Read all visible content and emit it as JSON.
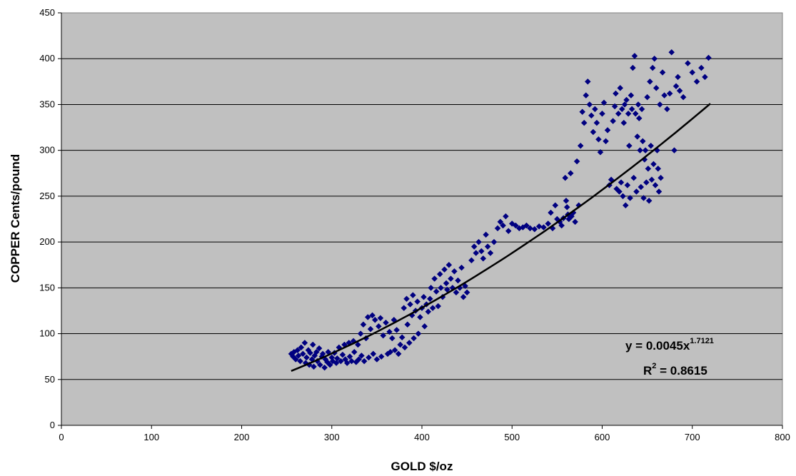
{
  "chart_data": {
    "type": "scatter",
    "title": "",
    "xlabel": "GOLD $/oz",
    "ylabel": "COPPER Cents/pound",
    "xlim": [
      0,
      800
    ],
    "ylim": [
      0,
      450
    ],
    "x_ticks": [
      0,
      100,
      200,
      300,
      400,
      500,
      600,
      700,
      800
    ],
    "y_ticks": [
      0,
      50,
      100,
      150,
      200,
      250,
      300,
      350,
      400,
      450
    ],
    "grid": "horizontal",
    "legend": "none",
    "plot_background": "#c0c0c0",
    "colors": {
      "marker": "#000080",
      "trendline": "#000000"
    },
    "trendline": {
      "type": "power",
      "coefficient": 0.0045,
      "exponent": 1.7121,
      "x_range": [
        255,
        720
      ],
      "equation_prefix": "y = 0.0045x",
      "equation_exponent": "1.7121",
      "r2_prefix": "R",
      "r2_exp": "2",
      "r2_suffix": " = 0.8615"
    },
    "series": [
      {
        "points": [
          [
            255,
            78
          ],
          [
            257,
            75
          ],
          [
            258,
            80
          ],
          [
            260,
            72
          ],
          [
            262,
            82
          ],
          [
            263,
            76
          ],
          [
            265,
            70
          ],
          [
            266,
            85
          ],
          [
            268,
            78
          ],
          [
            270,
            90
          ],
          [
            271,
            68
          ],
          [
            272,
            74
          ],
          [
            274,
            82
          ],
          [
            275,
            66
          ],
          [
            276,
            79
          ],
          [
            278,
            72
          ],
          [
            279,
            88
          ],
          [
            280,
            64
          ],
          [
            281,
            76
          ],
          [
            283,
            80
          ],
          [
            284,
            70
          ],
          [
            286,
            84
          ],
          [
            287,
            66
          ],
          [
            289,
            75
          ],
          [
            290,
            78
          ],
          [
            292,
            63
          ],
          [
            293,
            72
          ],
          [
            295,
            69
          ],
          [
            296,
            80
          ],
          [
            298,
            66
          ],
          [
            300,
            74
          ],
          [
            301,
            70
          ],
          [
            303,
            79
          ],
          [
            305,
            68
          ],
          [
            306,
            73
          ],
          [
            308,
            85
          ],
          [
            310,
            70
          ],
          [
            312,
            77
          ],
          [
            314,
            88
          ],
          [
            315,
            72
          ],
          [
            317,
            68
          ],
          [
            319,
            90
          ],
          [
            320,
            75
          ],
          [
            322,
            70
          ],
          [
            324,
            92
          ],
          [
            325,
            80
          ],
          [
            327,
            69
          ],
          [
            329,
            88
          ],
          [
            330,
            72
          ],
          [
            332,
            100
          ],
          [
            333,
            76
          ],
          [
            335,
            110
          ],
          [
            336,
            70
          ],
          [
            338,
            95
          ],
          [
            340,
            118
          ],
          [
            341,
            74
          ],
          [
            343,
            105
          ],
          [
            345,
            120
          ],
          [
            346,
            78
          ],
          [
            348,
            115
          ],
          [
            350,
            72
          ],
          [
            352,
            108
          ],
          [
            354,
            117
          ],
          [
            355,
            75
          ],
          [
            357,
            98
          ],
          [
            360,
            112
          ],
          [
            362,
            78
          ],
          [
            364,
            102
          ],
          [
            365,
            80
          ],
          [
            367,
            95
          ],
          [
            369,
            115
          ],
          [
            370,
            82
          ],
          [
            372,
            104
          ],
          [
            374,
            78
          ],
          [
            376,
            88
          ],
          [
            378,
            96
          ],
          [
            380,
            128
          ],
          [
            381,
            85
          ],
          [
            383,
            138
          ],
          [
            384,
            110
          ],
          [
            386,
            90
          ],
          [
            387,
            132
          ],
          [
            389,
            120
          ],
          [
            390,
            142
          ],
          [
            391,
            95
          ],
          [
            393,
            125
          ],
          [
            395,
            135
          ],
          [
            396,
            100
          ],
          [
            398,
            118
          ],
          [
            400,
            128
          ],
          [
            402,
            140
          ],
          [
            403,
            108
          ],
          [
            405,
            132
          ],
          [
            407,
            124
          ],
          [
            409,
            138
          ],
          [
            410,
            150
          ],
          [
            412,
            128
          ],
          [
            414,
            160
          ],
          [
            416,
            146
          ],
          [
            418,
            130
          ],
          [
            420,
            165
          ],
          [
            421,
            150
          ],
          [
            423,
            140
          ],
          [
            425,
            170
          ],
          [
            427,
            155
          ],
          [
            428,
            148
          ],
          [
            430,
            175
          ],
          [
            432,
            160
          ],
          [
            434,
            150
          ],
          [
            436,
            168
          ],
          [
            438,
            145
          ],
          [
            440,
            158
          ],
          [
            442,
            150
          ],
          [
            444,
            172
          ],
          [
            446,
            140
          ],
          [
            448,
            152
          ],
          [
            450,
            145
          ],
          [
            455,
            180
          ],
          [
            458,
            195
          ],
          [
            460,
            188
          ],
          [
            463,
            200
          ],
          [
            466,
            190
          ],
          [
            468,
            182
          ],
          [
            471,
            208
          ],
          [
            473,
            195
          ],
          [
            476,
            188
          ],
          [
            480,
            200
          ],
          [
            484,
            215
          ],
          [
            487,
            222
          ],
          [
            490,
            218
          ],
          [
            493,
            228
          ],
          [
            496,
            212
          ],
          [
            500,
            220
          ],
          [
            504,
            218
          ],
          [
            508,
            215
          ],
          [
            512,
            216
          ],
          [
            516,
            218
          ],
          [
            520,
            215
          ],
          [
            525,
            214
          ],
          [
            530,
            217
          ],
          [
            535,
            216
          ],
          [
            540,
            220
          ],
          [
            543,
            232
          ],
          [
            545,
            215
          ],
          [
            548,
            240
          ],
          [
            550,
            225
          ],
          [
            553,
            222
          ],
          [
            555,
            218
          ],
          [
            557,
            226
          ],
          [
            559,
            270
          ],
          [
            560,
            245
          ],
          [
            561,
            238
          ],
          [
            562,
            230
          ],
          [
            563,
            225
          ],
          [
            565,
            275
          ],
          [
            566,
            228
          ],
          [
            568,
            232
          ],
          [
            570,
            222
          ],
          [
            572,
            288
          ],
          [
            574,
            240
          ],
          [
            576,
            305
          ],
          [
            578,
            342
          ],
          [
            580,
            330
          ],
          [
            582,
            360
          ],
          [
            584,
            375
          ],
          [
            586,
            350
          ],
          [
            588,
            338
          ],
          [
            590,
            320
          ],
          [
            592,
            345
          ],
          [
            594,
            330
          ],
          [
            596,
            312
          ],
          [
            598,
            298
          ],
          [
            600,
            340
          ],
          [
            602,
            352
          ],
          [
            604,
            310
          ],
          [
            606,
            322
          ],
          [
            608,
            262
          ],
          [
            610,
            268
          ],
          [
            612,
            332
          ],
          [
            614,
            348
          ],
          [
            615,
            362
          ],
          [
            616,
            258
          ],
          [
            618,
            340
          ],
          [
            619,
            255
          ],
          [
            620,
            368
          ],
          [
            621,
            265
          ],
          [
            622,
            345
          ],
          [
            623,
            250
          ],
          [
            624,
            330
          ],
          [
            625,
            350
          ],
          [
            626,
            240
          ],
          [
            627,
            355
          ],
          [
            628,
            262
          ],
          [
            629,
            340
          ],
          [
            630,
            305
          ],
          [
            631,
            248
          ],
          [
            632,
            360
          ],
          [
            633,
            345
          ],
          [
            634,
            390
          ],
          [
            635,
            270
          ],
          [
            636,
            403
          ],
          [
            637,
            340
          ],
          [
            638,
            255
          ],
          [
            639,
            315
          ],
          [
            640,
            350
          ],
          [
            641,
            335
          ],
          [
            642,
            300
          ],
          [
            643,
            260
          ],
          [
            644,
            345
          ],
          [
            645,
            310
          ],
          [
            646,
            248
          ],
          [
            647,
            290
          ],
          [
            648,
            300
          ],
          [
            649,
            265
          ],
          [
            650,
            358
          ],
          [
            651,
            280
          ],
          [
            652,
            245
          ],
          [
            653,
            375
          ],
          [
            654,
            305
          ],
          [
            655,
            268
          ],
          [
            656,
            390
          ],
          [
            657,
            285
          ],
          [
            658,
            400
          ],
          [
            659,
            262
          ],
          [
            660,
            368
          ],
          [
            661,
            300
          ],
          [
            662,
            280
          ],
          [
            663,
            255
          ],
          [
            664,
            350
          ],
          [
            665,
            270
          ],
          [
            667,
            385
          ],
          [
            669,
            360
          ],
          [
            672,
            345
          ],
          [
            675,
            362
          ],
          [
            677,
            407
          ],
          [
            680,
            300
          ],
          [
            682,
            370
          ],
          [
            684,
            380
          ],
          [
            686,
            365
          ],
          [
            690,
            358
          ],
          [
            695,
            395
          ],
          [
            700,
            385
          ],
          [
            705,
            375
          ],
          [
            710,
            390
          ],
          [
            714,
            380
          ],
          [
            718,
            401
          ]
        ]
      }
    ]
  }
}
